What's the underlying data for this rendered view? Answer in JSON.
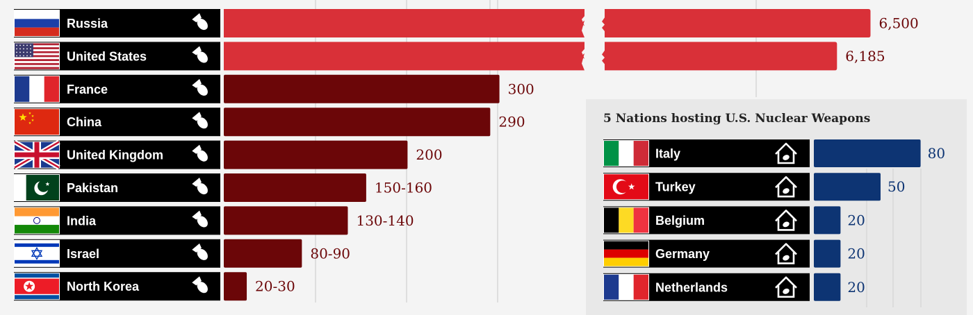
{
  "colors": {
    "bar_highlight": "#d93038",
    "bar_main": "#6b0608",
    "bar_inset": "#0d3473",
    "value_main": "#6b0608",
    "value_inset": "#0d3473",
    "label_bg": "#000000"
  },
  "chart_data": [
    {
      "type": "bar",
      "orientation": "horizontal",
      "axis_break": true,
      "grid": true,
      "categories": [
        "Russia",
        "United States",
        "France",
        "China",
        "United Kingdom",
        "Pakistan",
        "India",
        "Israel",
        "North Korea"
      ],
      "values": [
        6500,
        6185,
        300,
        290,
        200,
        155,
        135,
        85,
        25
      ],
      "value_labels": [
        "6,500",
        "6,185",
        "300",
        "290",
        "200",
        "150-160",
        "130-140",
        "80-90",
        "20-30"
      ],
      "highlight": [
        true,
        true,
        false,
        false,
        false,
        false,
        false,
        false,
        false
      ],
      "flags": [
        "russia-flag",
        "usa-flag",
        "france-flag",
        "china-flag",
        "uk-flag",
        "pakistan-flag",
        "india-flag",
        "israel-flag",
        "north-korea-flag"
      ],
      "icon": "bomb-icon"
    },
    {
      "type": "bar",
      "orientation": "horizontal",
      "title": "5 Nations hosting U.S. Nuclear Weapons",
      "grid": true,
      "categories": [
        "Italy",
        "Turkey",
        "Belgium",
        "Germany",
        "Netherlands"
      ],
      "values": [
        80,
        50,
        20,
        20,
        20
      ],
      "value_labels": [
        "80",
        "50",
        "20",
        "20",
        "20"
      ],
      "flags": [
        "italy-flag",
        "turkey-flag",
        "belgium-flag",
        "germany-flag",
        "netherlands-flag"
      ],
      "icon": "house-bomb-icon"
    }
  ]
}
